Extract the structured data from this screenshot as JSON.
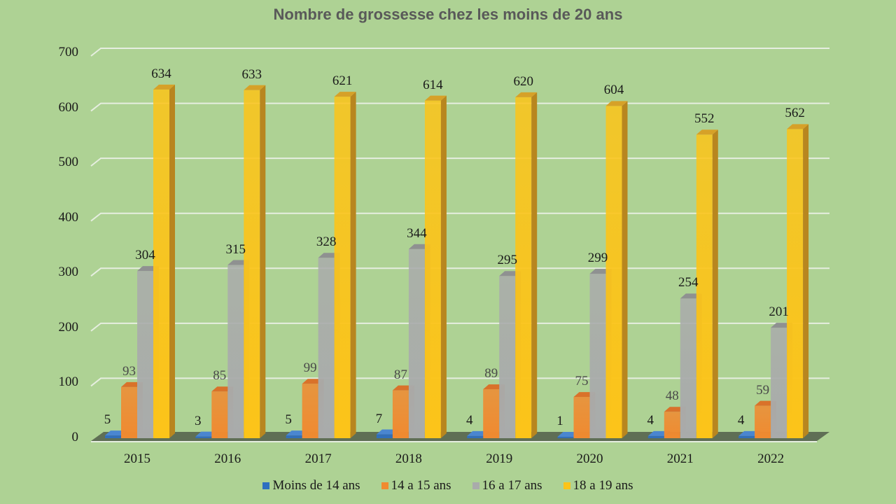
{
  "title": "Nombre de grossesse chez les moins de 20 ans",
  "colors": {
    "background": "#aed294",
    "grid": "#e6eee0",
    "floor": "#5f6f55",
    "series": [
      "#2e6fc0",
      "#f08a30",
      "#a9abab",
      "#fcc419"
    ],
    "series_side": [
      "#1f4f8a",
      "#c86a1c",
      "#8a8c8c",
      "#b8861f"
    ],
    "series_top": [
      "#4a86d0",
      "#d9722a",
      "#8f9191",
      "#d6a128"
    ]
  },
  "y_axis": {
    "ticks": [
      "0",
      "100",
      "200",
      "300",
      "400",
      "500",
      "600",
      "700"
    ]
  },
  "legend": [
    {
      "label": "Moins de 14 ans",
      "color": "#2e6fc0"
    },
    {
      "label": "14 a 15 ans",
      "color": "#f08a30"
    },
    {
      "label": "16 a 17 ans",
      "color": "#a9abab"
    },
    {
      "label": "18 a 19 ans",
      "color": "#fcc419"
    }
  ],
  "chart_data": {
    "type": "bar",
    "title": "Nombre de grossesse chez les moins de 20 ans",
    "xlabel": "",
    "ylabel": "",
    "categories": [
      "2015",
      "2016",
      "2017",
      "2018",
      "2019",
      "2020",
      "2021",
      "2022"
    ],
    "series": [
      {
        "name": "Moins de 14 ans",
        "values": [
          5,
          3,
          5,
          7,
          4,
          1,
          4,
          4
        ]
      },
      {
        "name": "14 a 15 ans",
        "values": [
          93,
          85,
          99,
          87,
          89,
          75,
          48,
          59
        ]
      },
      {
        "name": "16 a 17 ans",
        "values": [
          304,
          315,
          328,
          344,
          295,
          299,
          254,
          201
        ]
      },
      {
        "name": "18 a 19 ans",
        "values": [
          634,
          633,
          621,
          614,
          620,
          604,
          552,
          562
        ]
      }
    ],
    "ylim": [
      0,
      700
    ],
    "yticks": [
      0,
      100,
      200,
      300,
      400,
      500,
      600,
      700
    ],
    "grid": true,
    "legend_position": "bottom",
    "style": "3d-clustered-column"
  }
}
